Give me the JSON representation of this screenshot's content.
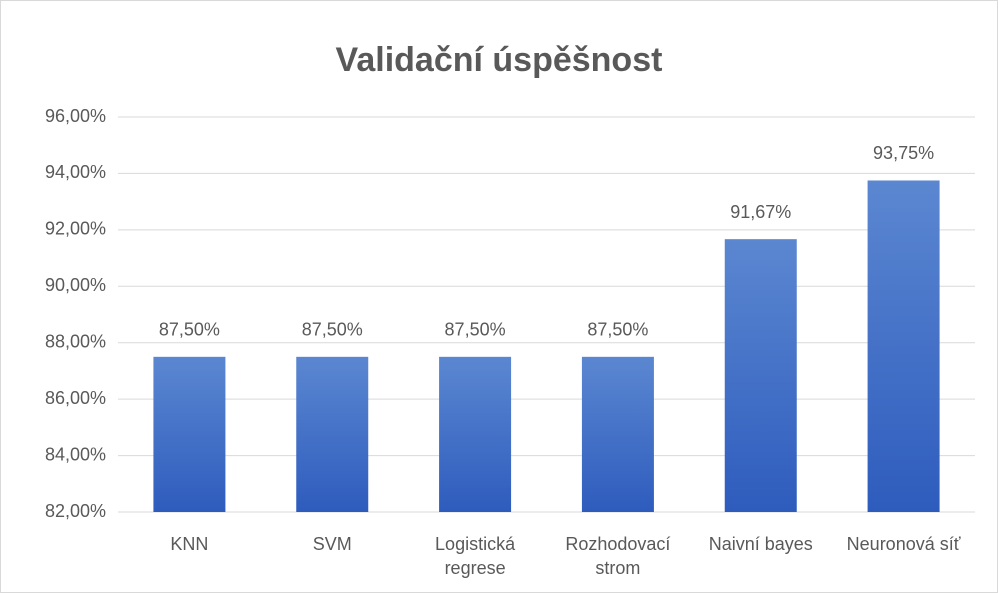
{
  "chart_data": {
    "type": "bar",
    "title": "Validační úspěšnost",
    "categories": [
      "KNN",
      "SVM",
      "Logistická regrese",
      "Rozhodovací strom",
      "Naivní bayes",
      "Neuronová síť"
    ],
    "values": [
      87.5,
      87.5,
      87.5,
      87.5,
      91.67,
      93.75
    ],
    "value_labels": [
      "87,50%",
      "87,50%",
      "87,50%",
      "87,50%",
      "91,67%",
      "93,75%"
    ],
    "color": "#4472c4",
    "ylim": [
      82,
      96
    ],
    "yticks": [
      {
        "value": 82,
        "label": "82,00%"
      },
      {
        "value": 84,
        "label": "84,00%"
      },
      {
        "value": 86,
        "label": "86,00%"
      },
      {
        "value": 88,
        "label": "88,00%"
      },
      {
        "value": 90,
        "label": "90,00%"
      },
      {
        "value": 92,
        "label": "92,00%"
      },
      {
        "value": 94,
        "label": "94,00%"
      },
      {
        "value": 96,
        "label": "96,00%"
      }
    ],
    "grid": true
  }
}
